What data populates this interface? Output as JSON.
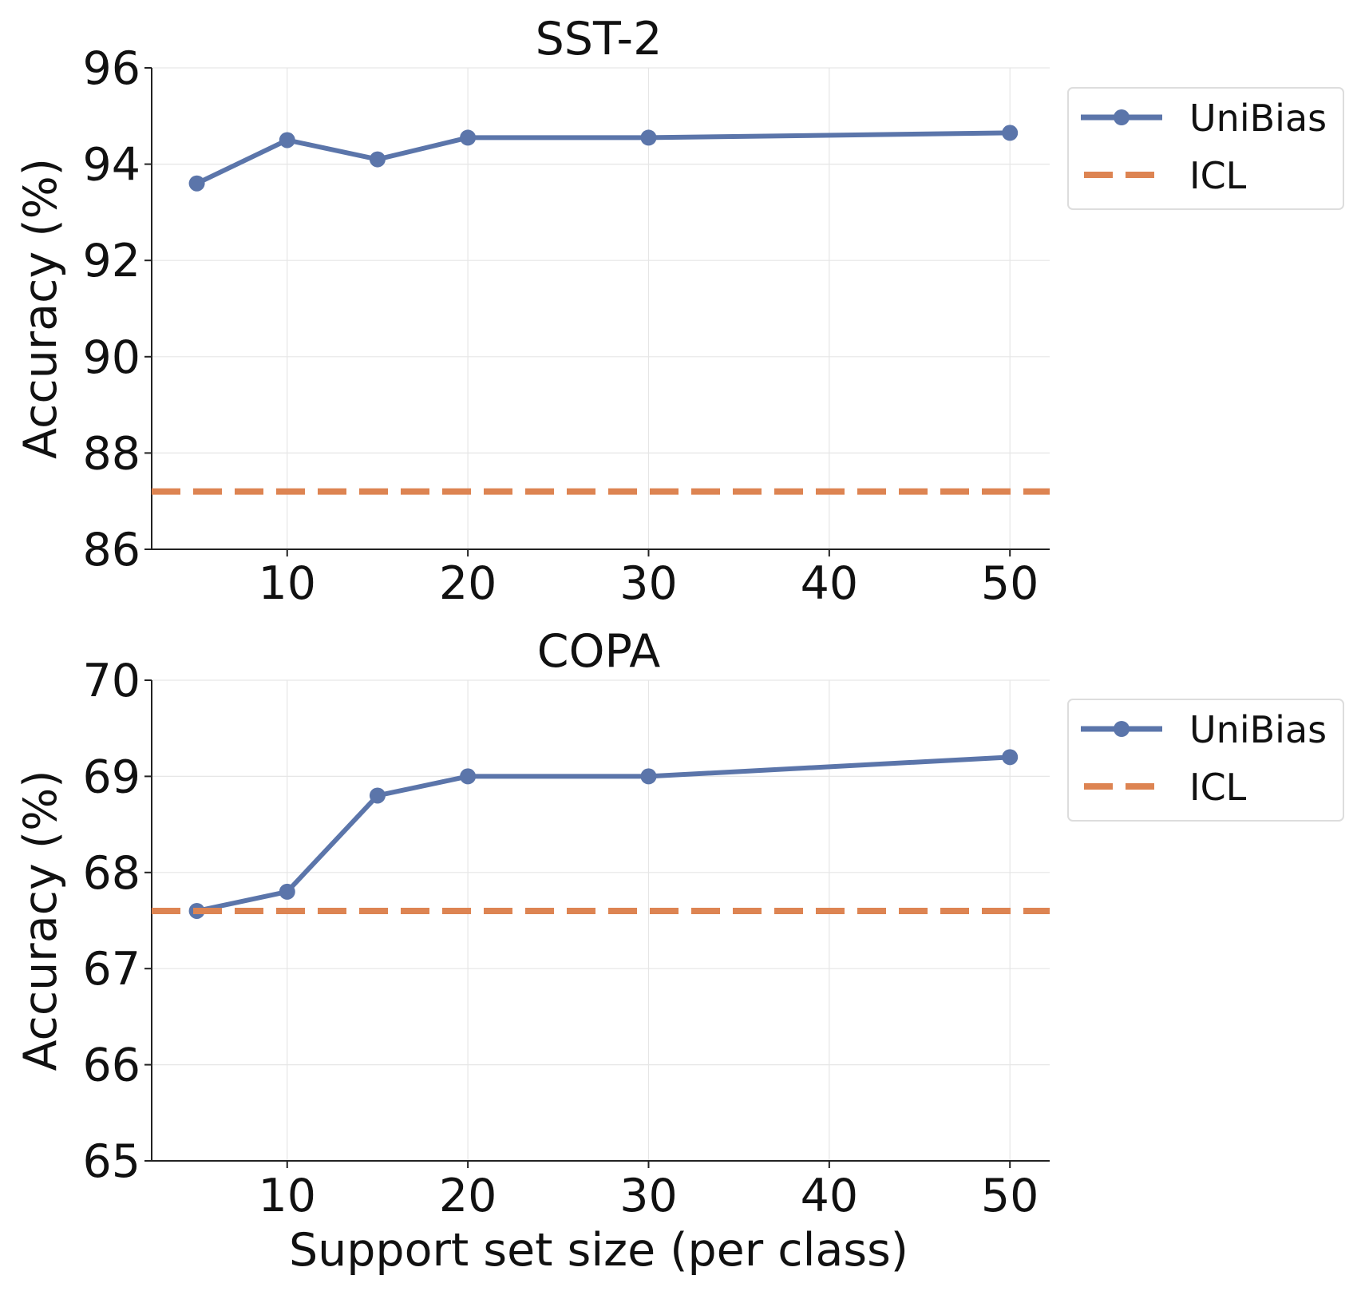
{
  "chart_data": [
    {
      "type": "line",
      "title": "SST-2",
      "xlabel": "",
      "ylabel": "Accuracy (%)",
      "xlim": [
        2.5,
        52.2
      ],
      "ylim": [
        86,
        96
      ],
      "xticks": [
        10,
        20,
        30,
        40,
        50
      ],
      "yticks": [
        86,
        88,
        90,
        92,
        94,
        96
      ],
      "grid": true,
      "legend_position": "outside-top-right",
      "series": [
        {
          "name": "UniBias",
          "style": "solid-markers",
          "color": "#5b75aa",
          "x": [
            5,
            10,
            15,
            20,
            30,
            50
          ],
          "y": [
            93.6,
            94.5,
            94.1,
            94.55,
            94.55,
            94.65
          ]
        },
        {
          "name": "ICL",
          "style": "dashed",
          "color": "#dd8452",
          "x": [
            2.5,
            52.2
          ],
          "y": [
            87.2,
            87.2
          ]
        }
      ]
    },
    {
      "type": "line",
      "title": "COPA",
      "xlabel": "Support set size (per class)",
      "ylabel": "Accuracy (%)",
      "xlim": [
        2.5,
        52.2
      ],
      "ylim": [
        65,
        70
      ],
      "xticks": [
        10,
        20,
        30,
        40,
        50
      ],
      "yticks": [
        65,
        66,
        67,
        68,
        69,
        70
      ],
      "grid": true,
      "legend_position": "outside-top-right",
      "series": [
        {
          "name": "UniBias",
          "style": "solid-markers",
          "color": "#5b75aa",
          "x": [
            5,
            10,
            15,
            20,
            30,
            50
          ],
          "y": [
            67.6,
            67.8,
            68.8,
            69.0,
            69.0,
            69.2
          ]
        },
        {
          "name": "ICL",
          "style": "dashed",
          "color": "#dd8452",
          "x": [
            2.5,
            52.2
          ],
          "y": [
            67.6,
            67.6
          ]
        }
      ]
    }
  ]
}
